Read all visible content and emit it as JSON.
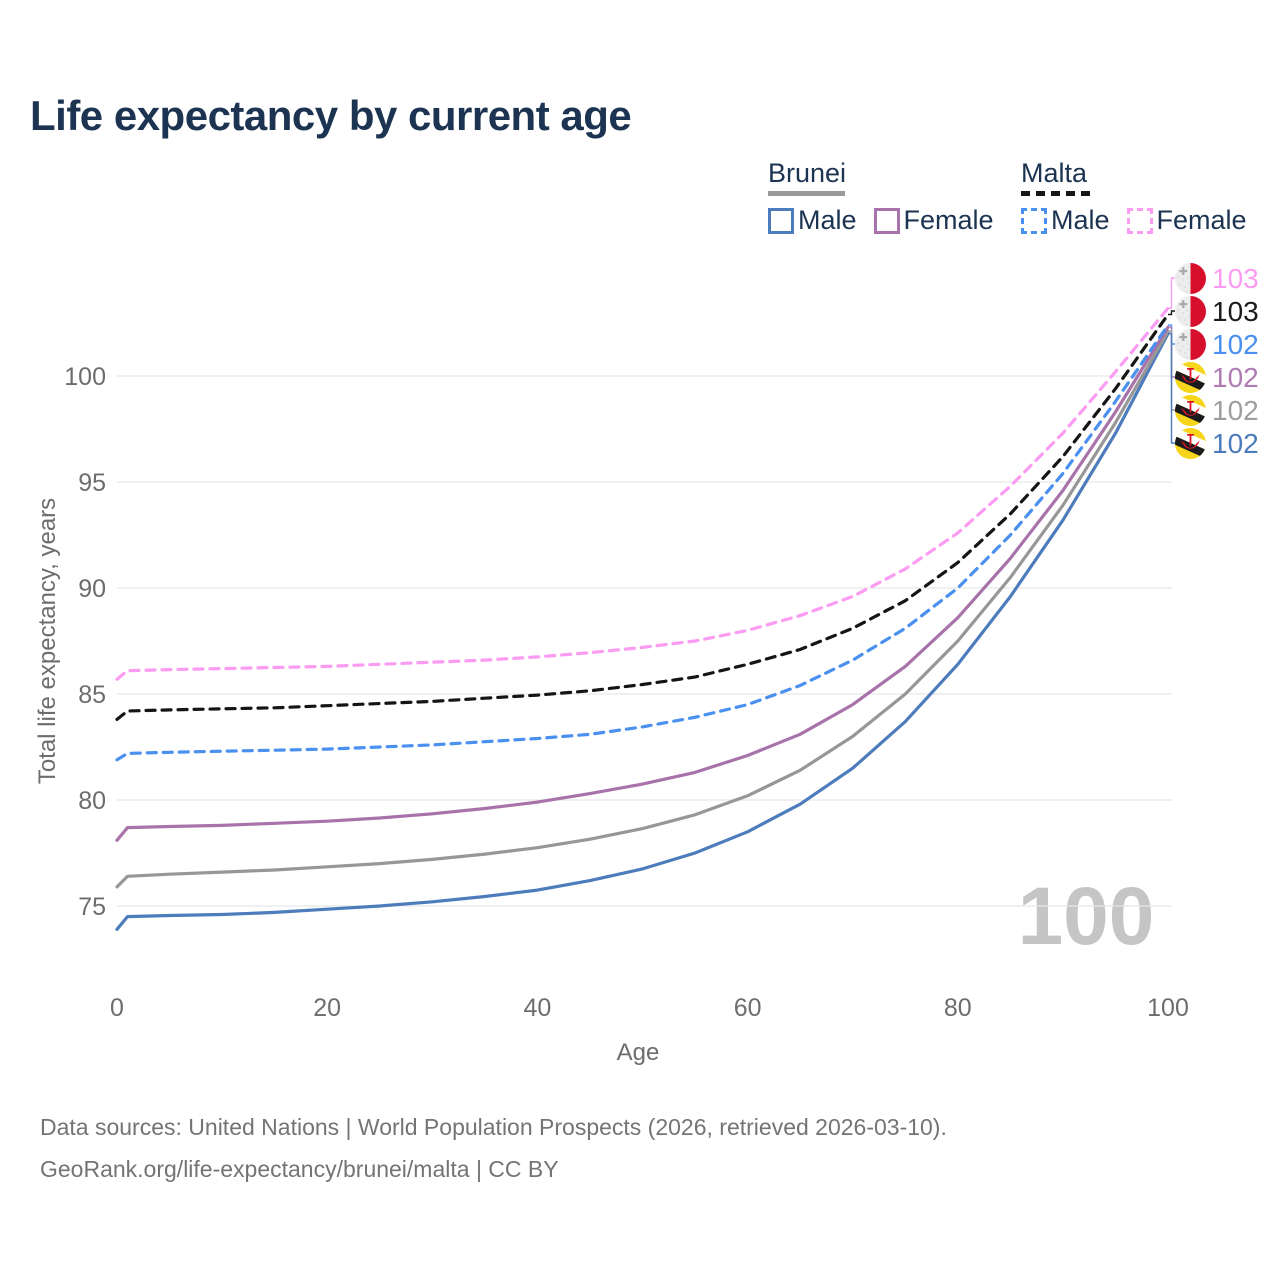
{
  "title": "Life expectancy by current age",
  "watermark_age": "100",
  "colors": {
    "title_text": "#1c3351",
    "axis_text": "#6d6d6d",
    "gridline": "#e8e8e8",
    "watermark": "#c5c5c5",
    "footer_text": "#747474",
    "brunei_male": "#4d7cbc",
    "brunei_all": "#979797",
    "brunei_female": "#a872aa",
    "malta_male": "#4a90f0",
    "malta_all": "#151515",
    "malta_female": "#fb9cf2",
    "malta_flag_red": "#d60f2c",
    "brunei_flag_yellow": "#f6d51b"
  },
  "legend": {
    "groups": [
      {
        "label": "Brunei",
        "style": "solid",
        "underline_color": "#9a9a9a",
        "items": [
          {
            "label": "Male",
            "color": "#4d7cbc",
            "dashed": false
          },
          {
            "label": "Female",
            "color": "#a872aa",
            "dashed": false
          }
        ]
      },
      {
        "label": "Malta",
        "style": "dashed",
        "underline_color": "#161616",
        "items": [
          {
            "label": "Male",
            "color": "#4a90f0",
            "dashed": true
          },
          {
            "label": "Female",
            "color": "#fb9cf2",
            "dashed": true
          }
        ]
      }
    ]
  },
  "end_labels": [
    {
      "series_id": "malta_female",
      "value": "103",
      "flag": "malta",
      "color": "#fb9cf2"
    },
    {
      "series_id": "malta_all",
      "value": "103",
      "flag": "malta",
      "color": "#1a1a1a"
    },
    {
      "series_id": "malta_male",
      "value": "102",
      "flag": "malta",
      "color": "#4a90f0"
    },
    {
      "series_id": "brunei_female",
      "value": "102",
      "flag": "brunei",
      "color": "#b07cb4"
    },
    {
      "series_id": "brunei_all",
      "value": "102",
      "flag": "brunei",
      "color": "#9e9e9e"
    },
    {
      "series_id": "brunei_male",
      "value": "102",
      "flag": "brunei",
      "color": "#4d7cbc"
    }
  ],
  "footer": {
    "line1": "Data sources: United Nations | World Population Prospects (2026, retrieved 2026-03-10).",
    "line2": "GeoRank.org/life-expectancy/brunei/malta | CC BY"
  },
  "chart_data": {
    "type": "line",
    "title": "Life expectancy by current age",
    "xlabel": "Age",
    "ylabel": "Total life expectancy, years",
    "xlim": [
      0,
      100
    ],
    "ylim": [
      75,
      100
    ],
    "x_ticks": [
      0,
      20,
      40,
      60,
      80,
      100
    ],
    "y_ticks": [
      75,
      80,
      85,
      90,
      95,
      100
    ],
    "grid": "horizontal",
    "legend_position": "top-right",
    "x": [
      0,
      1,
      5,
      10,
      15,
      20,
      25,
      30,
      35,
      40,
      45,
      50,
      55,
      60,
      65,
      70,
      75,
      80,
      85,
      90,
      95,
      100
    ],
    "series": [
      {
        "id": "brunei_male",
        "name": "Brunei Male",
        "color": "#4d7cbc",
        "dashed": false,
        "values": [
          73.9,
          74.5,
          74.55,
          74.6,
          74.7,
          74.85,
          75.0,
          75.2,
          75.45,
          75.75,
          76.2,
          76.75,
          77.5,
          78.5,
          79.8,
          81.5,
          83.7,
          86.4,
          89.6,
          93.2,
          97.3,
          102.0
        ]
      },
      {
        "id": "brunei_all",
        "name": "Brunei",
        "color": "#979797",
        "dashed": false,
        "values": [
          75.9,
          76.4,
          76.5,
          76.6,
          76.7,
          76.85,
          77.0,
          77.2,
          77.45,
          77.75,
          78.15,
          78.65,
          79.3,
          80.2,
          81.4,
          83.0,
          85.0,
          87.5,
          90.5,
          93.9,
          97.8,
          102.1
        ]
      },
      {
        "id": "brunei_female",
        "name": "Brunei Female",
        "color": "#a872aa",
        "dashed": false,
        "values": [
          78.1,
          78.7,
          78.75,
          78.8,
          78.9,
          79.0,
          79.15,
          79.35,
          79.6,
          79.9,
          80.3,
          80.75,
          81.3,
          82.1,
          83.1,
          84.5,
          86.3,
          88.6,
          91.4,
          94.6,
          98.3,
          102.3
        ]
      },
      {
        "id": "malta_male",
        "name": "Malta Male",
        "color": "#4a90f0",
        "dashed": true,
        "values": [
          81.9,
          82.2,
          82.25,
          82.3,
          82.35,
          82.4,
          82.5,
          82.6,
          82.75,
          82.9,
          83.1,
          83.45,
          83.9,
          84.5,
          85.4,
          86.6,
          88.1,
          90.0,
          92.5,
          95.4,
          98.8,
          102.4
        ]
      },
      {
        "id": "malta_all",
        "name": "Malta",
        "color": "#151515",
        "dashed": true,
        "values": [
          83.8,
          84.2,
          84.25,
          84.3,
          84.35,
          84.45,
          84.55,
          84.65,
          84.8,
          84.95,
          85.15,
          85.45,
          85.8,
          86.4,
          87.1,
          88.1,
          89.4,
          91.2,
          93.5,
          96.2,
          99.4,
          102.9
        ]
      },
      {
        "id": "malta_female",
        "name": "Malta Female",
        "color": "#fb9cf2",
        "dashed": true,
        "values": [
          85.7,
          86.1,
          86.15,
          86.2,
          86.25,
          86.3,
          86.4,
          86.5,
          86.6,
          86.75,
          86.95,
          87.2,
          87.5,
          88.0,
          88.7,
          89.6,
          90.9,
          92.6,
          94.8,
          97.3,
          100.2,
          103.2
        ]
      }
    ]
  }
}
